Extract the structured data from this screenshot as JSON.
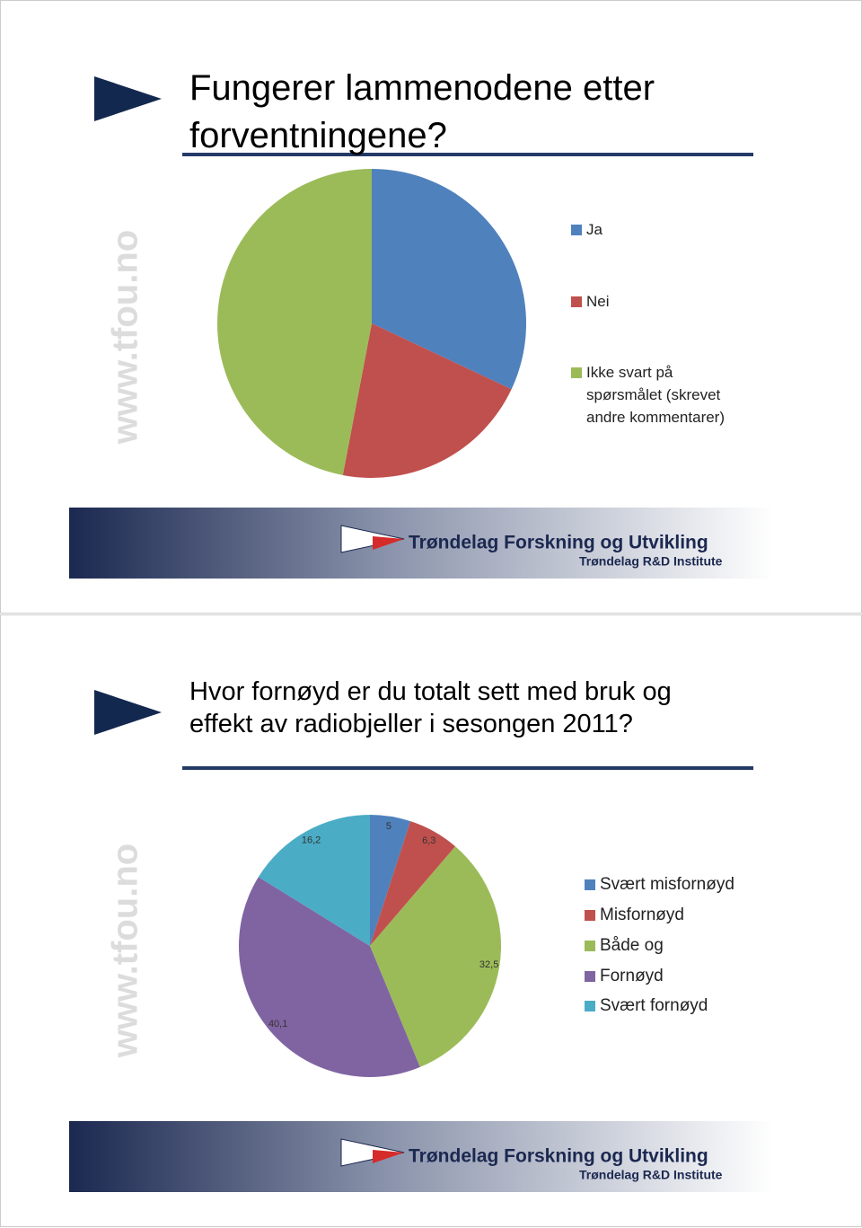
{
  "chart_data": [
    {
      "type": "pie",
      "title": "Fungerer lammenodene etter forventningene?",
      "categories": [
        "Ja",
        "Nei",
        "Ikke svart på spørsmålet (skrevet andre kommentarer)"
      ],
      "values": [
        32,
        21,
        47
      ],
      "colors": [
        "#4f81bd",
        "#c0504d",
        "#9bbb59"
      ]
    },
    {
      "type": "pie",
      "title": "Hvor fornøyd er du totalt sett med bruk og effekt av radiobjeller i sesongen 2011?",
      "categories": [
        "Svært misfornøyd",
        "Misfornøyd",
        "Både og",
        "Fornøyd",
        "Svært fornøyd"
      ],
      "values": [
        5,
        6.3,
        32.5,
        40.1,
        16.2
      ],
      "value_labels": [
        "5",
        "6,3",
        "32,5",
        "40,1",
        "16,2"
      ],
      "colors": [
        "#4f81bd",
        "#c0504d",
        "#9bbb59",
        "#8064a2",
        "#4bacc6"
      ]
    }
  ],
  "watermark": "www.tfou.no",
  "footer": {
    "name": "Trøndelag Forskning og Utvikling",
    "subtitle": "Trøndelag R&D Institute"
  }
}
